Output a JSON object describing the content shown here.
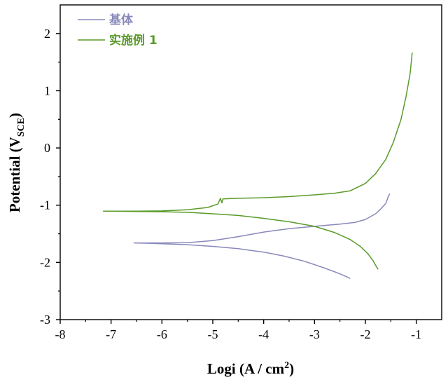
{
  "chart_data": {
    "type": "line",
    "title": "",
    "xlabel": "Logi (A / cm",
    "xlabel_sup": "2",
    "xlabel_close": ")",
    "ylabel": "Potential (V",
    "ylabel_sub": "SCE",
    "ylabel_close": ")",
    "xlim": [
      -8,
      -0.5
    ],
    "ylim": [
      -3,
      2.5
    ],
    "xticks": [
      -8,
      -7,
      -6,
      -5,
      -4,
      -3,
      -2,
      -1
    ],
    "xtick_labels": [
      "-8",
      "-7",
      "-6",
      "-5",
      "-4",
      "-3",
      "-2",
      "-1"
    ],
    "yticks": [
      -3,
      -2,
      -1,
      0,
      1,
      2
    ],
    "ytick_labels": [
      "-3",
      "-2",
      "-1",
      "0",
      "1",
      "2"
    ],
    "grid": false,
    "legend_position": "top-left",
    "series": [
      {
        "name": "基体",
        "color": "#8888bb",
        "points": [
          [
            -2.3,
            -2.28
          ],
          [
            -2.5,
            -2.2
          ],
          [
            -2.8,
            -2.1
          ],
          [
            -3.2,
            -1.98
          ],
          [
            -3.6,
            -1.89
          ],
          [
            -4.0,
            -1.82
          ],
          [
            -4.5,
            -1.76
          ],
          [
            -5.0,
            -1.72
          ],
          [
            -5.5,
            -1.69
          ],
          [
            -6.0,
            -1.675
          ],
          [
            -6.3,
            -1.665
          ],
          [
            -6.55,
            -1.66
          ],
          [
            -6.0,
            -1.66
          ],
          [
            -5.5,
            -1.655
          ],
          [
            -5.0,
            -1.62
          ],
          [
            -4.5,
            -1.55
          ],
          [
            -4.0,
            -1.47
          ],
          [
            -3.5,
            -1.41
          ],
          [
            -3.0,
            -1.37
          ],
          [
            -2.5,
            -1.33
          ],
          [
            -2.2,
            -1.3
          ],
          [
            -2.0,
            -1.25
          ],
          [
            -1.8,
            -1.15
          ],
          [
            -1.7,
            -1.07
          ],
          [
            -1.6,
            -0.97
          ],
          [
            -1.55,
            -0.85
          ],
          [
            -1.52,
            -0.8
          ]
        ]
      },
      {
        "name": "实施例 1",
        "color": "#5a9a2a",
        "points": [
          [
            -1.75,
            -2.12
          ],
          [
            -1.8,
            -2.05
          ],
          [
            -1.85,
            -1.97
          ],
          [
            -1.95,
            -1.85
          ],
          [
            -2.1,
            -1.72
          ],
          [
            -2.3,
            -1.6
          ],
          [
            -2.6,
            -1.48
          ],
          [
            -3.0,
            -1.37
          ],
          [
            -3.5,
            -1.29
          ],
          [
            -4.0,
            -1.23
          ],
          [
            -4.5,
            -1.18
          ],
          [
            -5.0,
            -1.15
          ],
          [
            -5.5,
            -1.125
          ],
          [
            -6.0,
            -1.115
          ],
          [
            -6.5,
            -1.11
          ],
          [
            -7.0,
            -1.105
          ],
          [
            -7.15,
            -1.105
          ],
          [
            -6.5,
            -1.105
          ],
          [
            -6.0,
            -1.1
          ],
          [
            -5.5,
            -1.08
          ],
          [
            -5.1,
            -1.04
          ],
          [
            -4.9,
            -0.98
          ],
          [
            -4.85,
            -0.88
          ],
          [
            -4.82,
            -0.96
          ],
          [
            -4.8,
            -0.89
          ],
          [
            -4.5,
            -0.88
          ],
          [
            -4.0,
            -0.87
          ],
          [
            -3.5,
            -0.85
          ],
          [
            -3.0,
            -0.82
          ],
          [
            -2.6,
            -0.79
          ],
          [
            -2.3,
            -0.75
          ],
          [
            -2.0,
            -0.62
          ],
          [
            -1.8,
            -0.45
          ],
          [
            -1.6,
            -0.2
          ],
          [
            -1.45,
            0.1
          ],
          [
            -1.3,
            0.5
          ],
          [
            -1.2,
            0.9
          ],
          [
            -1.12,
            1.3
          ],
          [
            -1.08,
            1.67
          ]
        ]
      }
    ]
  }
}
